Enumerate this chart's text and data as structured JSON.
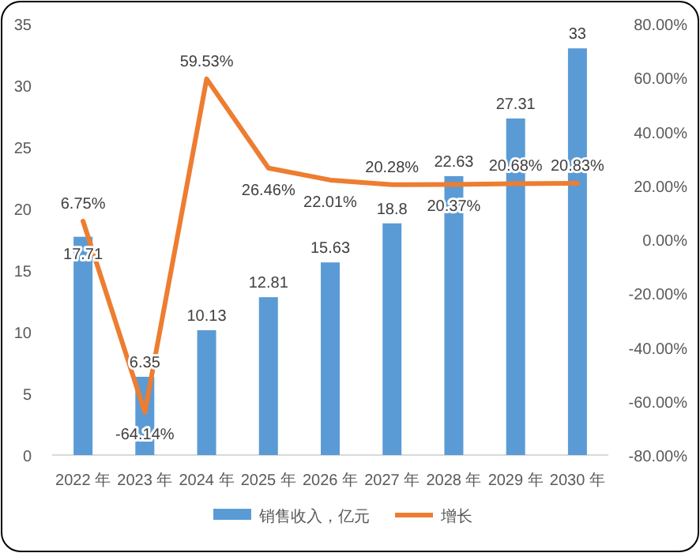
{
  "chart_data": {
    "type": "bar",
    "categories": [
      "2022 年",
      "2023 年",
      "2024 年",
      "2025 年",
      "2026 年",
      "2027 年",
      "2028 年",
      "2029 年",
      "2030 年"
    ],
    "series": [
      {
        "name": "销售收入，亿元",
        "color": "#5b9bd5",
        "values": [
          17.71,
          6.35,
          10.13,
          12.81,
          15.63,
          18.8,
          22.63,
          27.31,
          33
        ],
        "value_labels": [
          "17.71",
          "6.35",
          "10.13",
          "12.81",
          "15.63",
          "18.8",
          "22.63",
          "27.31",
          "33"
        ]
      },
      {
        "name": "增长",
        "type": "line",
        "axis": "y2",
        "color": "#ed7d31",
        "values": [
          6.75,
          -64.14,
          59.53,
          26.46,
          22.01,
          20.28,
          20.37,
          20.68,
          20.83
        ],
        "value_labels": [
          "6.75%",
          "-64.14%",
          "59.53%",
          "26.46%",
          "22.01%",
          "20.28%",
          "20.37%",
          "20.68%",
          "20.83%"
        ]
      }
    ],
    "ylim": [
      0,
      35
    ],
    "yticks": [
      0,
      5,
      10,
      15,
      20,
      25,
      30,
      35
    ],
    "y2lim": [
      -80,
      80
    ],
    "y2ticks": [
      {
        "value": -80,
        "label": "-80.00%"
      },
      {
        "value": -60,
        "label": "-60.00%"
      },
      {
        "value": -40,
        "label": "-40.00%"
      },
      {
        "value": -20,
        "label": "-20.00%"
      },
      {
        "value": 0,
        "label": "0.00%"
      },
      {
        "value": 20,
        "label": "20.00%"
      },
      {
        "value": 40,
        "label": "40.00%"
      },
      {
        "value": 60,
        "label": "60.00%"
      },
      {
        "value": 80,
        "label": "80.00%"
      }
    ],
    "grid": false,
    "legend": "bottom",
    "marker": "none",
    "line_style": "solid"
  }
}
